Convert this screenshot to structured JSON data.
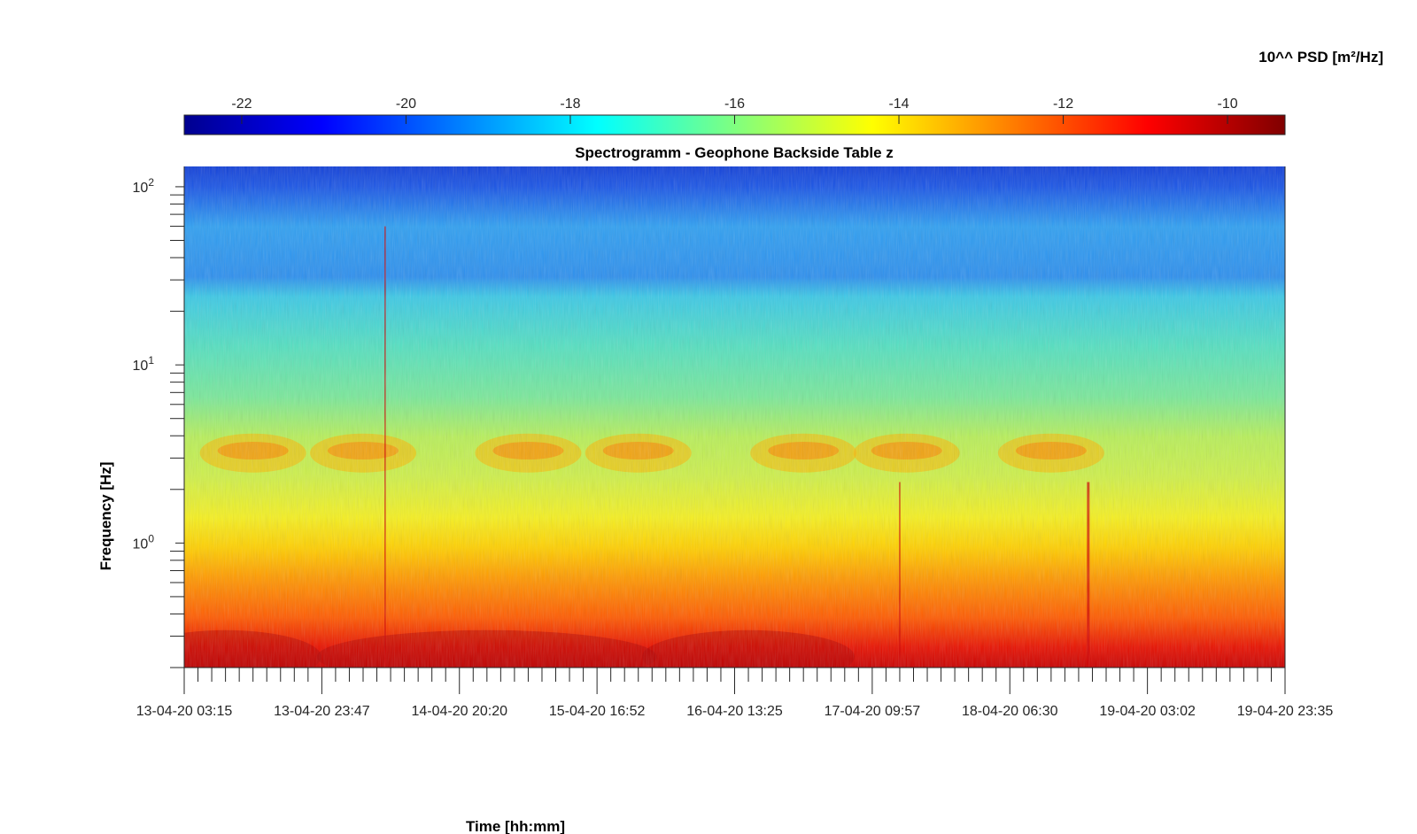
{
  "chart_data": {
    "type": "heatmap",
    "title": "Spectrogramm - Geophone Backside Table z",
    "xlabel": "Time [hh:mm]",
    "ylabel": "Frequency [Hz]",
    "yscale": "log",
    "ylim": [
      0.2,
      130
    ],
    "y_ticks": [
      {
        "base": "10",
        "exp": "2",
        "value": 100
      },
      {
        "base": "10",
        "exp": "1",
        "value": 10
      },
      {
        "base": "10",
        "exp": "0",
        "value": 1
      }
    ],
    "x_ticks": [
      "13-04-20 03:15",
      "13-04-20 23:47",
      "14-04-20 20:20",
      "15-04-20 16:52",
      "16-04-20 13:25",
      "17-04-20 09:57",
      "18-04-20 06:30",
      "19-04-20 03:02",
      "19-04-20 23:35"
    ],
    "colorbar": {
      "label": "10^^ PSD [m²/Hz]",
      "placement": "top",
      "colormap": "jet",
      "range": [
        -22.7,
        -9.3
      ],
      "ticks": [
        "-22",
        "-20",
        "-18",
        "-16",
        "-14",
        "-12",
        "-10"
      ],
      "tick_values": [
        -22,
        -20,
        -18,
        -16,
        -14,
        -12,
        -10
      ]
    }
  }
}
